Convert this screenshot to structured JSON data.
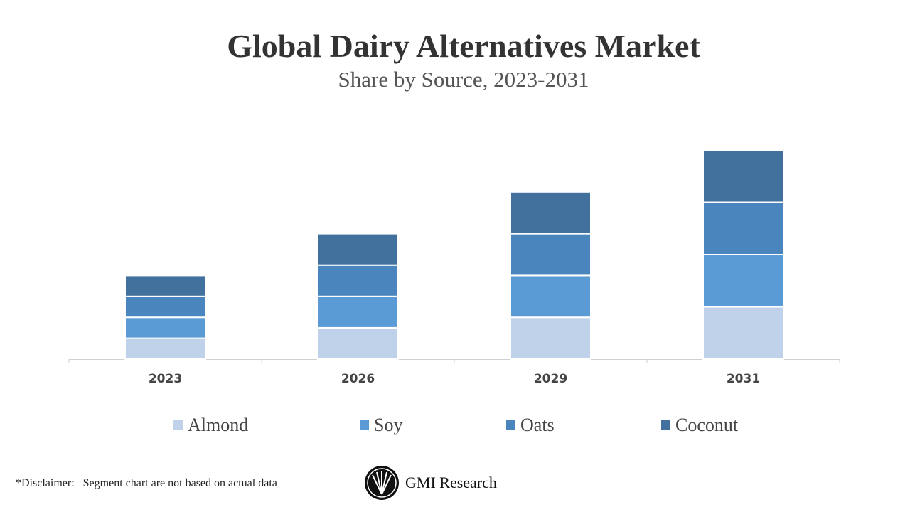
{
  "chart_data": {
    "type": "stacked_bar",
    "title": "Global Dairy Alternatives Market",
    "subtitle": "Share by Source, 2023-2031",
    "categories": [
      "2023",
      "2026",
      "2029",
      "2031"
    ],
    "series": [
      {
        "name": "Almond",
        "color": "#c0d1ea",
        "values": [
          1,
          1.5,
          2,
          2.5
        ]
      },
      {
        "name": "Soy",
        "color": "#5b9bd5",
        "values": [
          1,
          1.5,
          2,
          2.5
        ]
      },
      {
        "name": "Oats",
        "color": "#4a86bd",
        "values": [
          1,
          1.5,
          2,
          2.5
        ]
      },
      {
        "name": "Coconut",
        "color": "#41719c",
        "values": [
          1,
          1.5,
          2,
          2.5
        ]
      }
    ],
    "ylim": [
      0,
      10
    ],
    "legend": "bottom"
  },
  "footer": {
    "disclaimer": "*Disclaimer:   Segment chart are not based on actual data",
    "brand": "GMI Research"
  }
}
